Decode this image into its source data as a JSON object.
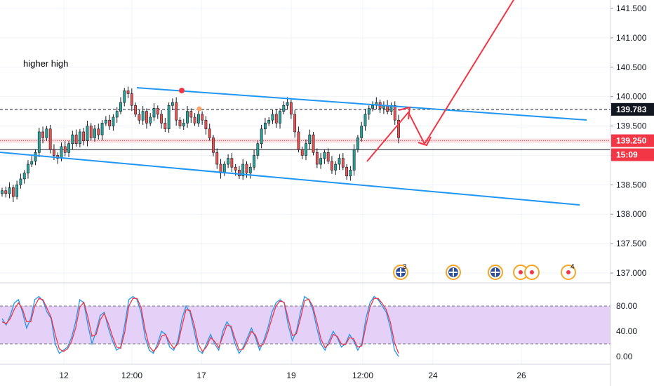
{
  "chart_data": [
    {
      "type": "candlestick",
      "symbol_context": "price",
      "x_ticks": [
        "12",
        "12:00",
        "17",
        "19",
        "12:00",
        "24",
        "26"
      ],
      "y_ticks": [
        "137.000",
        "137.500",
        "138.000",
        "138.500",
        "139.000",
        "139.500",
        "140.000",
        "140.500",
        "141.000",
        "141.500"
      ],
      "ylim": [
        136.9,
        141.75
      ],
      "price_labels": [
        {
          "name": "last-price",
          "text": "139.783",
          "value": 139.783,
          "color": "#131722"
        },
        {
          "name": "level-price",
          "text": "139.250",
          "value": 139.25,
          "color": "#f23645"
        },
        {
          "name": "countdown",
          "text": "15:09",
          "value": 139.1,
          "color": "#f23645"
        }
      ],
      "horizontal_levels": [
        139.783,
        139.25,
        139.1
      ],
      "close_series": [
        138.4,
        138.35,
        138.45,
        138.3,
        138.5,
        138.6,
        138.7,
        138.85,
        138.9,
        139.05,
        139.4,
        139.3,
        139.45,
        139.1,
        139.0,
        138.95,
        139.15,
        139.05,
        139.2,
        139.35,
        139.2,
        139.4,
        139.25,
        139.5,
        139.3,
        139.45,
        139.35,
        139.55,
        139.6,
        139.5,
        139.65,
        139.75,
        139.9,
        140.1,
        140.05,
        139.85,
        139.7,
        139.6,
        139.75,
        139.55,
        139.65,
        139.8,
        139.7,
        139.55,
        139.45,
        139.85,
        139.9,
        139.6,
        139.5,
        139.55,
        139.75,
        139.65,
        139.55,
        139.7,
        139.6,
        139.45,
        139.3,
        139.05,
        138.85,
        138.7,
        138.85,
        138.95,
        138.8,
        138.75,
        138.65,
        138.85,
        138.7,
        138.8,
        139.0,
        139.2,
        139.45,
        139.55,
        139.6,
        139.7,
        139.55,
        139.75,
        139.85,
        139.9,
        139.7,
        139.4,
        139.1,
        139.0,
        139.2,
        139.35,
        139.05,
        138.85,
        138.95,
        139.05,
        138.9,
        138.75,
        138.85,
        138.95,
        138.8,
        138.65,
        138.75,
        139.1,
        139.3,
        139.5,
        139.7,
        139.8,
        139.85,
        139.9,
        139.8,
        139.85,
        139.75,
        139.85,
        139.6,
        139.3
      ]
    },
    {
      "type": "line",
      "indicator_context": "stochastic",
      "y_ticks": [
        "0.00",
        "40.00",
        "80.00"
      ],
      "ylim": [
        -5,
        105
      ],
      "band": [
        20,
        80
      ],
      "series": [
        {
          "color": "#2196f3",
          "values": [
            60,
            50,
            65,
            85,
            90,
            70,
            45,
            60,
            90,
            95,
            88,
            70,
            60,
            20,
            5,
            10,
            15,
            30,
            55,
            90,
            85,
            50,
            20,
            40,
            65,
            70,
            45,
            25,
            10,
            15,
            50,
            90,
            95,
            90,
            70,
            30,
            10,
            5,
            20,
            40,
            35,
            15,
            10,
            25,
            60,
            80,
            70,
            40,
            10,
            5,
            20,
            35,
            20,
            10,
            40,
            55,
            45,
            20,
            5,
            15,
            30,
            45,
            30,
            10,
            25,
            45,
            70,
            85,
            90,
            85,
            50,
            25,
            40,
            70,
            95,
            90,
            75,
            45,
            20,
            10,
            25,
            40,
            30,
            15,
            20,
            35,
            25,
            10,
            20,
            60,
            85,
            95,
            90,
            80,
            70,
            45,
            10,
            0
          ]
        },
        {
          "color": "#f23645",
          "values": [
            55,
            52,
            60,
            75,
            85,
            75,
            55,
            55,
            80,
            92,
            90,
            76,
            62,
            35,
            12,
            8,
            12,
            24,
            45,
            78,
            86,
            62,
            32,
            35,
            58,
            68,
            52,
            32,
            15,
            13,
            38,
            80,
            92,
            92,
            78,
            42,
            16,
            8,
            15,
            32,
            35,
            22,
            13,
            20,
            48,
            74,
            73,
            50,
            20,
            8,
            15,
            30,
            24,
            14,
            32,
            50,
            48,
            28,
            10,
            12,
            25,
            40,
            34,
            16,
            20,
            38,
            60,
            80,
            88,
            86,
            60,
            33,
            36,
            60,
            88,
            91,
            80,
            55,
            28,
            14,
            20,
            35,
            32,
            20,
            19,
            30,
            28,
            15,
            17,
            48,
            78,
            92,
            92,
            84,
            74,
            54,
            22,
            5
          ]
        }
      ]
    }
  ],
  "annotation": {
    "text": "higher high",
    "color": "#f23645"
  },
  "event_badges": [
    {
      "name": "event-badge-1",
      "count": "3"
    },
    {
      "name": "event-badge-2",
      "count": ""
    },
    {
      "name": "event-badge-3",
      "count": ""
    },
    {
      "name": "event-badge-4",
      "count": ""
    },
    {
      "name": "event-badge-5",
      "count": "4"
    }
  ],
  "colors": {
    "up": "#26a69a",
    "down": "#ef5350",
    "candle": "#131722",
    "channel": "#2196f3",
    "projection": "#f23645",
    "band_fill": "#e1c8f7",
    "grid": "#f0f3fa",
    "axis_border": "#d1d4dc"
  }
}
